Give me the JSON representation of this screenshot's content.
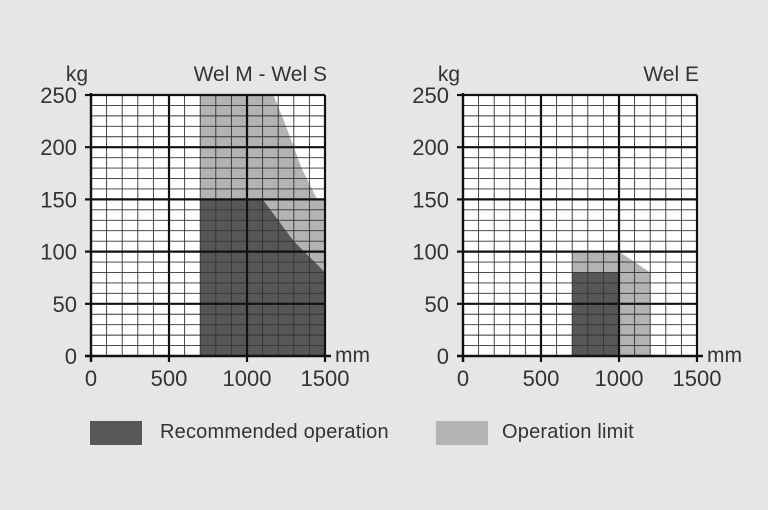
{
  "colors": {
    "background": "#e6e6e6",
    "plot_background": "#ffffff",
    "recommended": "#575757",
    "limit": "#b3b3b3",
    "grid_minor": "#333333",
    "grid_major": "#111111",
    "text": "#333333"
  },
  "legend": {
    "recommended_label": "Recommended operation",
    "limit_label": "Operation limit"
  },
  "chart_data": [
    {
      "type": "area",
      "title": "Wel M - Wel S",
      "xlabel": "mm",
      "ylabel": "kg",
      "xlim": [
        0,
        1500
      ],
      "ylim": [
        0,
        250
      ],
      "x_ticks": [
        0,
        500,
        1000,
        1500
      ],
      "y_ticks": [
        0,
        50,
        100,
        150,
        200,
        250
      ],
      "x_minor_step": 100,
      "y_minor_step": 10,
      "grid": true,
      "series": [
        {
          "name": "Operation limit",
          "color": "limit",
          "polygon": [
            [
              700,
              0
            ],
            [
              700,
              250
            ],
            [
              1170,
              250
            ],
            [
              1250,
              220
            ],
            [
              1350,
              180
            ],
            [
              1450,
              150
            ],
            [
              1500,
              150
            ],
            [
              1500,
              0
            ]
          ]
        },
        {
          "name": "Recommended operation",
          "color": "recommended",
          "polygon": [
            [
              700,
              0
            ],
            [
              700,
              150
            ],
            [
              1100,
              150
            ],
            [
              1200,
              130
            ],
            [
              1300,
              110
            ],
            [
              1400,
              95
            ],
            [
              1500,
              80
            ],
            [
              1500,
              0
            ]
          ]
        }
      ]
    },
    {
      "type": "area",
      "title": "Wel E",
      "xlabel": "mm",
      "ylabel": "kg",
      "xlim": [
        0,
        1500
      ],
      "ylim": [
        0,
        250
      ],
      "x_ticks": [
        0,
        500,
        1000,
        1500
      ],
      "y_ticks": [
        0,
        50,
        100,
        150,
        200,
        250
      ],
      "x_minor_step": 100,
      "y_minor_step": 10,
      "grid": true,
      "series": [
        {
          "name": "Operation limit",
          "color": "limit",
          "polygon": [
            [
              700,
              0
            ],
            [
              700,
              100
            ],
            [
              1000,
              100
            ],
            [
              1200,
              80
            ],
            [
              1200,
              0
            ]
          ]
        },
        {
          "name": "Recommended operation",
          "color": "recommended",
          "polygon": [
            [
              700,
              0
            ],
            [
              700,
              80
            ],
            [
              1000,
              80
            ],
            [
              1000,
              0
            ]
          ]
        }
      ]
    }
  ]
}
